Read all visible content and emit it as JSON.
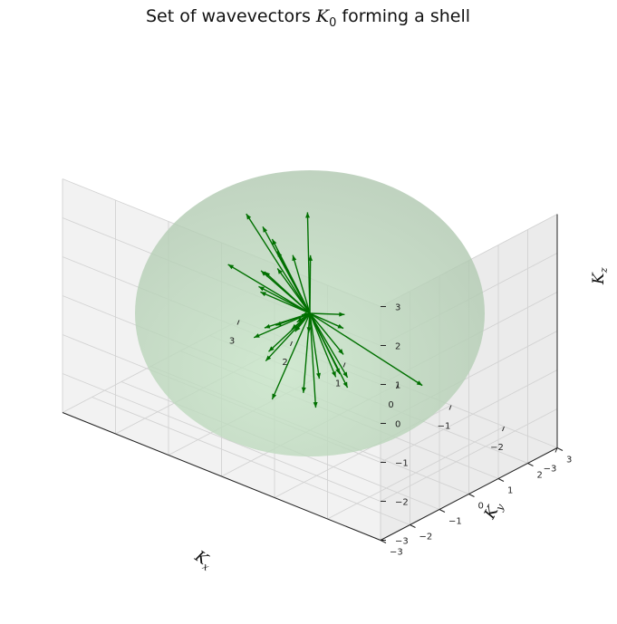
{
  "chart_data": {
    "type": "3d-quiver",
    "title": "Set of wavevectors K0 forming a shell",
    "title_parts": {
      "before": "Set of wavevectors ",
      "symbol": "K",
      "subscript": "0",
      "after": " forming a shell"
    },
    "xlabel": "Kx",
    "ylabel": "Ky",
    "zlabel": "Kz",
    "xlabel_parts": {
      "symbol": "K",
      "subscript": "x"
    },
    "ylabel_parts": {
      "symbol": "K",
      "subscript": "y"
    },
    "zlabel_parts": {
      "symbol": "K",
      "subscript": "z"
    },
    "xlim": [
      -3,
      3
    ],
    "ylim": [
      -3,
      3
    ],
    "zlim": [
      -3,
      3
    ],
    "x_ticks": [
      "3",
      "2",
      "1",
      "0",
      "−1",
      "−2",
      "−3"
    ],
    "y_ticks": [
      "−3",
      "−2",
      "−1",
      "0",
      "1",
      "2",
      "3"
    ],
    "z_ticks": [
      "3",
      "2",
      "1",
      "0",
      "−1",
      "−2",
      "−3"
    ],
    "grid": true,
    "sphere": {
      "radius": 2.5,
      "color": "#9ccc9c",
      "opacity": 0.45
    },
    "arrow_color": "#007000",
    "origin": [
      0,
      0,
      0
    ],
    "vectors": [
      {
        "x": 0.6,
        "y": -1.7,
        "z": 1.6
      },
      {
        "x": -1.4,
        "y": 1.3,
        "z": -1.6
      },
      {
        "x": 0.1,
        "y": 0.1,
        "z": 2.5
      },
      {
        "x": 0.0,
        "y": 0.2,
        "z": -2.5
      },
      {
        "x": 1.6,
        "y": 1.6,
        "z": 0.4
      },
      {
        "x": -1.6,
        "y": -1.6,
        "z": -0.4
      },
      {
        "x": 1.2,
        "y": 0.0,
        "z": 1.9
      },
      {
        "x": 1.0,
        "y": 0.2,
        "z": 1.6
      },
      {
        "x": -0.9,
        "y": -1.9,
        "z": 1.2
      },
      {
        "x": -0.4,
        "y": -2.0,
        "z": -1.2
      },
      {
        "x": 0.4,
        "y": 1.9,
        "z": -1.0
      },
      {
        "x": 1.6,
        "y": 1.2,
        "z": -0.8
      },
      {
        "x": -0.5,
        "y": -2.3,
        "z": 0.2
      },
      {
        "x": 1.5,
        "y": 1.6,
        "z": -0.3
      },
      {
        "x": 1.3,
        "y": 0.8,
        "z": -1.4
      },
      {
        "x": -0.6,
        "y": -1.3,
        "z": -1.2
      },
      {
        "x": 1.1,
        "y": 2.0,
        "z": 0.1
      },
      {
        "x": -0.5,
        "y": -2.4,
        "z": 0.0
      },
      {
        "x": 0.2,
        "y": -1.3,
        "z": 1.5
      },
      {
        "x": 0.3,
        "y": -1.0,
        "z": 1.3
      },
      {
        "x": -1.3,
        "y": -1.2,
        "z": 0.8
      },
      {
        "x": -1.1,
        "y": -1.1,
        "z": -0.6
      },
      {
        "x": 0.5,
        "y": -0.2,
        "z": 1.4
      },
      {
        "x": -0.6,
        "y": 0.2,
        "z": -1.4
      },
      {
        "x": 0.1,
        "y": -0.4,
        "z": 1.6
      },
      {
        "x": -0.4,
        "y": -0.4,
        "z": -1.3
      },
      {
        "x": 0.5,
        "y": -1.0,
        "z": -0.5
      },
      {
        "x": -0.8,
        "y": -0.3,
        "z": -0.5
      },
      {
        "x": 0.2,
        "y": -0.8,
        "z": -0.1
      },
      {
        "x": 0.3,
        "y": -1.2,
        "z": 1.0
      },
      {
        "x": 0.5,
        "y": 0.4,
        "z": -0.9
      },
      {
        "x": -0.2,
        "y": -0.8,
        "z": 0.2
      },
      {
        "x": -0.7,
        "y": -1.3,
        "z": 0.4
      },
      {
        "x": 0.9,
        "y": 1.0,
        "z": -1.3
      },
      {
        "x": -1.4,
        "y": -1.5,
        "z": -0.2
      }
    ]
  }
}
